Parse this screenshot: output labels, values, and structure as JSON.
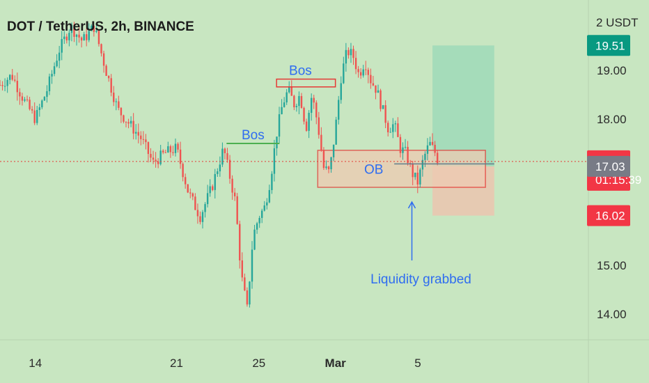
{
  "title": "DOT / TetherUS, 2h, BINANCE",
  "currency": "2 USDT",
  "colors": {
    "background": "#c8e6c1",
    "up": "#26a69a",
    "down": "#ef5350",
    "annotation_text": "#2f6df0",
    "bos_line_1": "#4caf50",
    "zone_border": "#e53935",
    "zone_fill": "#eecbb2",
    "target_fill": "#9fd9b8",
    "stop_fill": "#e9c7b0",
    "current_price_line": "#e53935"
  },
  "chart_data": {
    "type": "candlestick",
    "y_range": [
      13.6,
      20.6
    ],
    "y_ticks": [
      "19.00",
      "18.00",
      "15.00",
      "14.00"
    ],
    "y_tick_values": [
      19.0,
      18.0,
      15.0,
      14.0
    ],
    "x_ticks": [
      {
        "label": "14",
        "value": 0.06
      },
      {
        "label": "21",
        "value": 0.3
      },
      {
        "label": "25",
        "value": 0.44
      },
      {
        "label": "Mar",
        "value": 0.57,
        "bold": true
      },
      {
        "label": "5",
        "value": 0.71
      }
    ],
    "price_path": [
      [
        0.0,
        18.7
      ],
      [
        0.02,
        18.9
      ],
      [
        0.04,
        18.4
      ],
      [
        0.06,
        18.0
      ],
      [
        0.08,
        18.6
      ],
      [
        0.1,
        19.4
      ],
      [
        0.12,
        19.9
      ],
      [
        0.14,
        19.6
      ],
      [
        0.16,
        19.9
      ],
      [
        0.18,
        19.0
      ],
      [
        0.2,
        18.2
      ],
      [
        0.22,
        17.9
      ],
      [
        0.24,
        17.6
      ],
      [
        0.26,
        17.1
      ],
      [
        0.28,
        17.3
      ],
      [
        0.3,
        17.4
      ],
      [
        0.32,
        16.5
      ],
      [
        0.34,
        16.0
      ],
      [
        0.36,
        16.6
      ],
      [
        0.38,
        17.4
      ],
      [
        0.4,
        16.3
      ],
      [
        0.41,
        14.8
      ],
      [
        0.42,
        14.1
      ],
      [
        0.43,
        15.6
      ],
      [
        0.44,
        16.0
      ],
      [
        0.45,
        16.2
      ],
      [
        0.46,
        16.8
      ],
      [
        0.47,
        17.7
      ],
      [
        0.48,
        18.3
      ],
      [
        0.49,
        18.6
      ],
      [
        0.5,
        18.3
      ],
      [
        0.51,
        18.5
      ],
      [
        0.52,
        17.8
      ],
      [
        0.53,
        18.5
      ],
      [
        0.54,
        17.9
      ],
      [
        0.55,
        17.0
      ],
      [
        0.56,
        16.9
      ],
      [
        0.57,
        17.8
      ],
      [
        0.58,
        18.9
      ],
      [
        0.59,
        19.4
      ],
      [
        0.6,
        19.3
      ],
      [
        0.61,
        18.9
      ],
      [
        0.62,
        19.2
      ],
      [
        0.63,
        18.8
      ],
      [
        0.64,
        18.6
      ],
      [
        0.65,
        18.2
      ],
      [
        0.66,
        17.8
      ],
      [
        0.67,
        17.9
      ],
      [
        0.68,
        17.4
      ],
      [
        0.69,
        17.3
      ],
      [
        0.7,
        16.9
      ],
      [
        0.71,
        16.7
      ],
      [
        0.72,
        17.2
      ],
      [
        0.73,
        17.5
      ],
      [
        0.74,
        17.3
      ],
      [
        0.745,
        17.13
      ]
    ],
    "current_price": "17.13",
    "current_price_value": 17.13,
    "countdown": "01:15:39",
    "badges": [
      {
        "label": "19.51",
        "value": 19.51,
        "color": "#089981"
      },
      {
        "label": "17.13",
        "value": 17.13,
        "color": "#f23645"
      },
      {
        "label": "17.03",
        "value": 17.03,
        "color": "#787b86"
      },
      {
        "label": "16.02",
        "value": 16.02,
        "color": "#f23645"
      }
    ],
    "annotations": [
      {
        "label": "Bos",
        "kind": "bos-line",
        "x": [
          0.385,
          0.475
        ],
        "y": 17.5
      },
      {
        "label": "Bos",
        "kind": "bos-box",
        "x": [
          0.47,
          0.57
        ],
        "y": [
          18.66,
          18.82
        ]
      },
      {
        "label": "OB",
        "kind": "zone",
        "x": [
          0.54,
          0.825
        ],
        "y": [
          16.6,
          17.36
        ]
      },
      {
        "label": "Liquidity grabbed",
        "kind": "arrow",
        "x": 0.7,
        "y_from": 15.1,
        "y_to": 16.3
      }
    ],
    "position": {
      "x": [
        0.735,
        0.84
      ],
      "target": 19.51,
      "entry": 17.03,
      "stop": 16.02
    }
  }
}
